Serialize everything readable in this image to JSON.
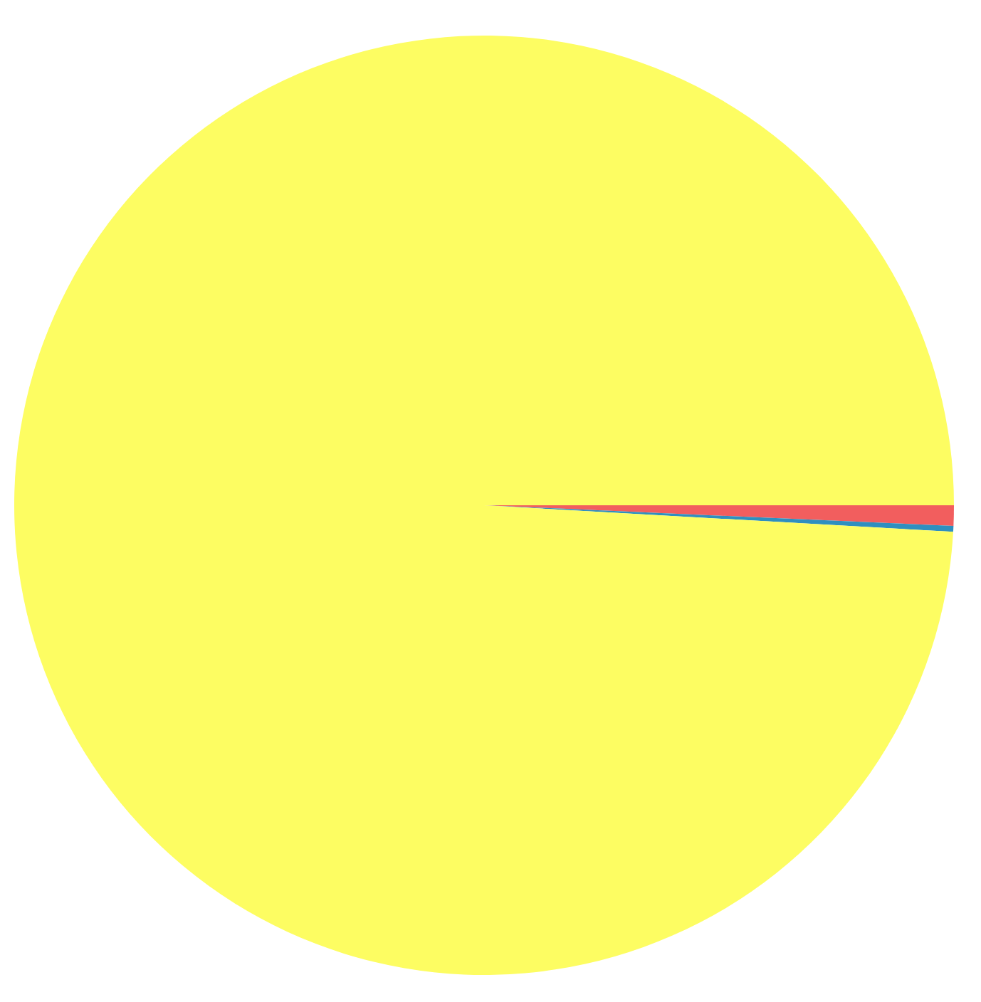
{
  "chart_data": {
    "type": "pie",
    "categories": [
      null,
      null,
      null
    ],
    "values": [
      0.7,
      0.2,
      99.1
    ],
    "colors": [
      "#f25e5e",
      "#2f8fbf",
      "#fdfd62"
    ]
  }
}
